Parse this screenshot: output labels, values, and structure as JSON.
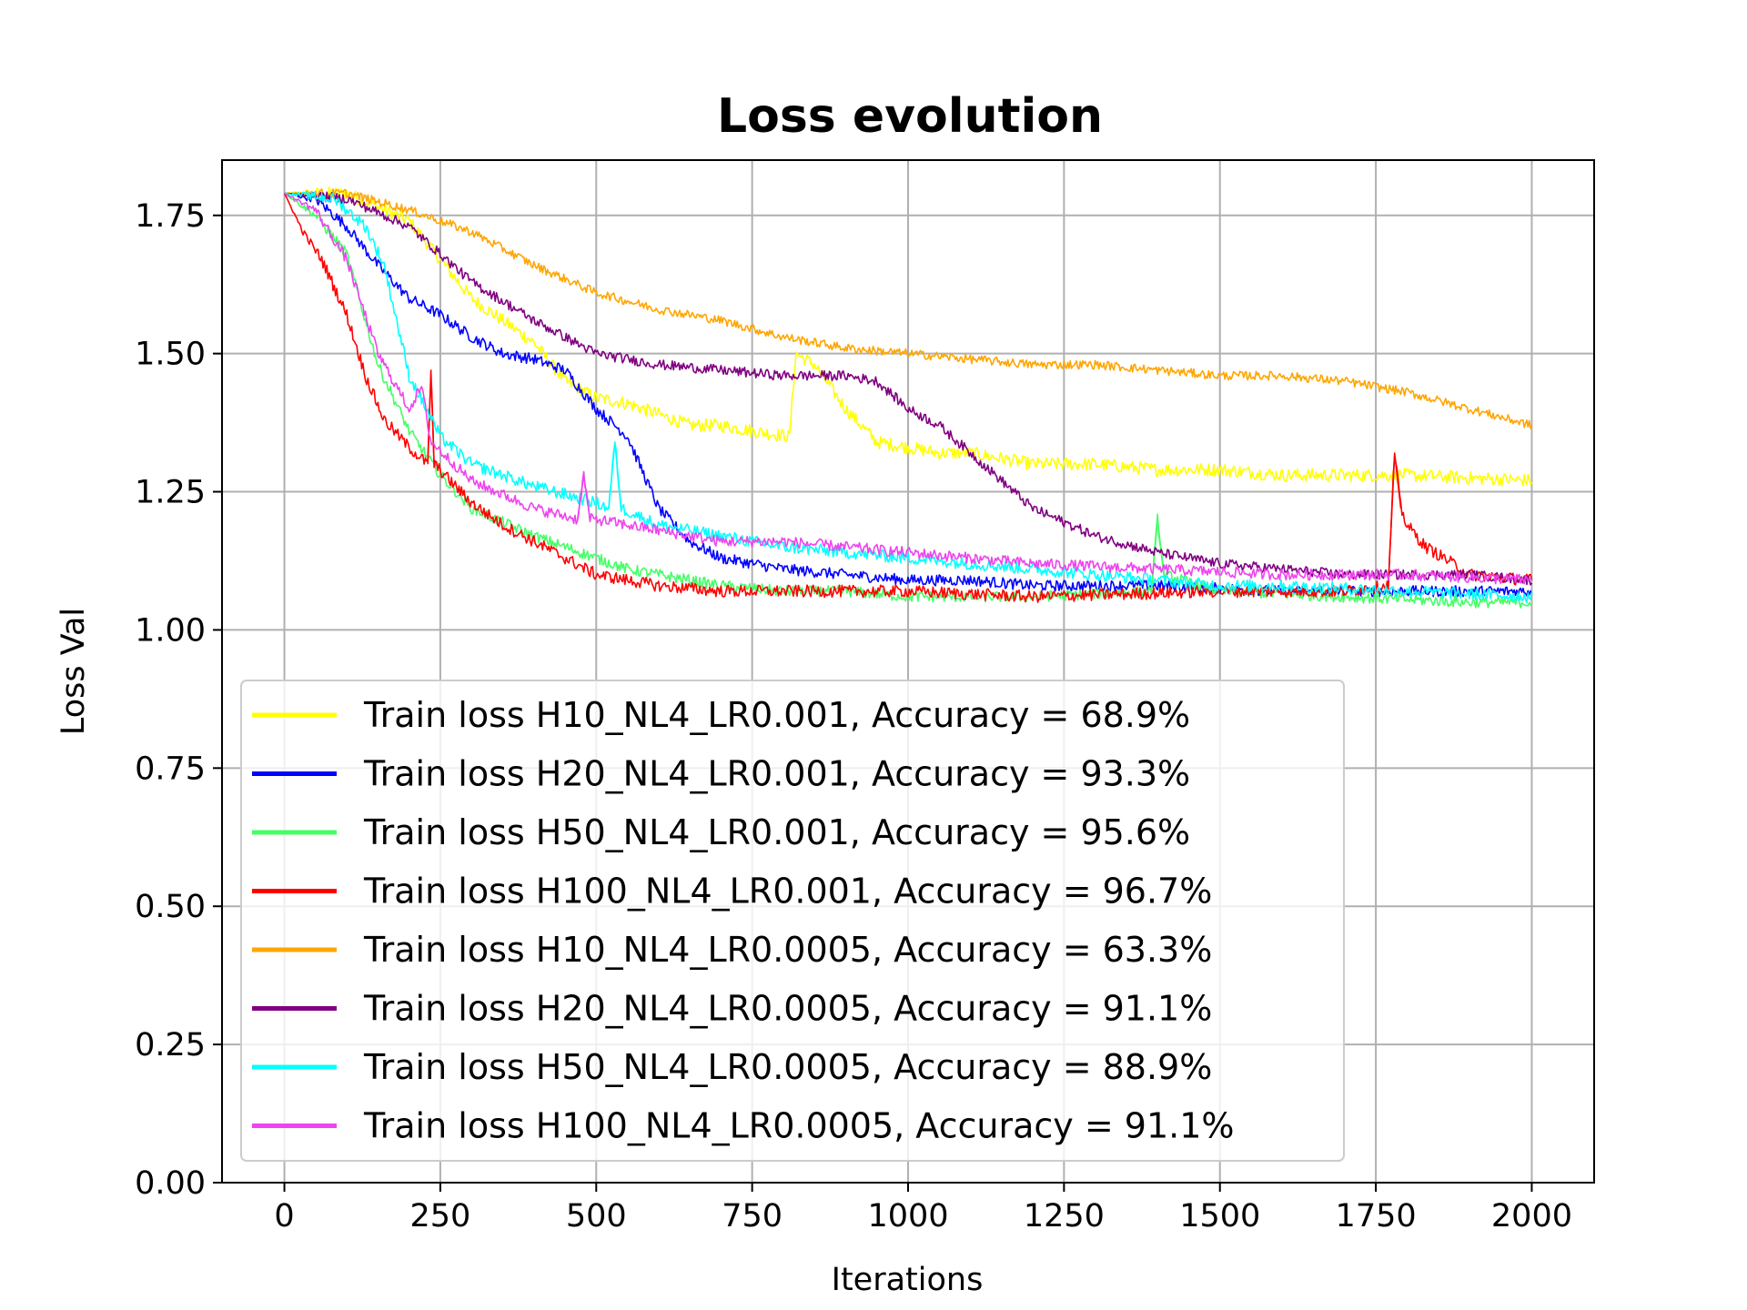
{
  "chart_data": {
    "type": "line",
    "title": "Loss evolution",
    "xlabel": "Iterations",
    "ylabel": "Loss Val",
    "xlim": [
      -100,
      2100
    ],
    "ylim": [
      0,
      1.85
    ],
    "xticks": [
      0,
      250,
      500,
      750,
      1000,
      1250,
      1500,
      1750,
      2000
    ],
    "xtick_labels": [
      "0",
      "250",
      "500",
      "750",
      "1000",
      "1250",
      "1500",
      "1750",
      "2000"
    ],
    "yticks": [
      0,
      0.25,
      0.5,
      0.75,
      1.0,
      1.25,
      1.5,
      1.75
    ],
    "ytick_labels": [
      "0.00",
      "0.25",
      "0.50",
      "0.75",
      "1.00",
      "1.25",
      "1.50",
      "1.75"
    ],
    "grid": true,
    "legend_position": "lower-left",
    "series": [
      {
        "name": "Train loss H10_NL4_LR0.001, Accuracy = 68.9%",
        "color": "#ffff00",
        "noise": 0.012,
        "points": [
          [
            0,
            1.79
          ],
          [
            100,
            1.79
          ],
          [
            200,
            1.74
          ],
          [
            250,
            1.67
          ],
          [
            300,
            1.6
          ],
          [
            350,
            1.56
          ],
          [
            400,
            1.52
          ],
          [
            450,
            1.45
          ],
          [
            500,
            1.42
          ],
          [
            550,
            1.41
          ],
          [
            600,
            1.39
          ],
          [
            650,
            1.37
          ],
          [
            700,
            1.37
          ],
          [
            750,
            1.36
          ],
          [
            810,
            1.35
          ],
          [
            820,
            1.5
          ],
          [
            850,
            1.48
          ],
          [
            900,
            1.4
          ],
          [
            950,
            1.34
          ],
          [
            1000,
            1.33
          ],
          [
            1050,
            1.32
          ],
          [
            1100,
            1.32
          ],
          [
            1200,
            1.3
          ],
          [
            1300,
            1.3
          ],
          [
            1400,
            1.29
          ],
          [
            1500,
            1.29
          ],
          [
            1600,
            1.28
          ],
          [
            1800,
            1.28
          ],
          [
            2000,
            1.27
          ]
        ]
      },
      {
        "name": "Train loss H20_NL4_LR0.001, Accuracy = 93.3%",
        "color": "#0000ff",
        "noise": 0.01,
        "points": [
          [
            0,
            1.79
          ],
          [
            50,
            1.78
          ],
          [
            100,
            1.73
          ],
          [
            150,
            1.66
          ],
          [
            200,
            1.6
          ],
          [
            250,
            1.57
          ],
          [
            300,
            1.53
          ],
          [
            350,
            1.5
          ],
          [
            400,
            1.49
          ],
          [
            450,
            1.47
          ],
          [
            500,
            1.4
          ],
          [
            550,
            1.35
          ],
          [
            600,
            1.22
          ],
          [
            650,
            1.16
          ],
          [
            700,
            1.13
          ],
          [
            800,
            1.11
          ],
          [
            900,
            1.1
          ],
          [
            1000,
            1.09
          ],
          [
            1100,
            1.09
          ],
          [
            1200,
            1.08
          ],
          [
            1400,
            1.08
          ],
          [
            1600,
            1.07
          ],
          [
            1800,
            1.07
          ],
          [
            2000,
            1.07
          ]
        ]
      },
      {
        "name": "Train loss H50_NL4_LR0.001, Accuracy = 95.6%",
        "color": "#44ff66",
        "noise": 0.01,
        "points": [
          [
            0,
            1.79
          ],
          [
            50,
            1.75
          ],
          [
            100,
            1.68
          ],
          [
            150,
            1.48
          ],
          [
            200,
            1.36
          ],
          [
            250,
            1.28
          ],
          [
            300,
            1.22
          ],
          [
            400,
            1.17
          ],
          [
            500,
            1.13
          ],
          [
            550,
            1.11
          ],
          [
            600,
            1.1
          ],
          [
            700,
            1.08
          ],
          [
            800,
            1.07
          ],
          [
            900,
            1.07
          ],
          [
            1000,
            1.06
          ],
          [
            1200,
            1.06
          ],
          [
            1390,
            1.07
          ],
          [
            1400,
            1.2
          ],
          [
            1410,
            1.1
          ],
          [
            1500,
            1.07
          ],
          [
            1700,
            1.06
          ],
          [
            1900,
            1.05
          ],
          [
            2000,
            1.05
          ]
        ]
      },
      {
        "name": "Train loss H100_NL4_LR0.001, Accuracy = 96.7%",
        "color": "#ff0000",
        "noise": 0.011,
        "points": [
          [
            0,
            1.79
          ],
          [
            30,
            1.72
          ],
          [
            60,
            1.67
          ],
          [
            100,
            1.57
          ],
          [
            130,
            1.46
          ],
          [
            160,
            1.38
          ],
          [
            200,
            1.33
          ],
          [
            230,
            1.3
          ],
          [
            235,
            1.47
          ],
          [
            240,
            1.3
          ],
          [
            300,
            1.23
          ],
          [
            350,
            1.19
          ],
          [
            400,
            1.16
          ],
          [
            450,
            1.13
          ],
          [
            500,
            1.1
          ],
          [
            600,
            1.08
          ],
          [
            700,
            1.07
          ],
          [
            800,
            1.07
          ],
          [
            1000,
            1.07
          ],
          [
            1200,
            1.06
          ],
          [
            1500,
            1.07
          ],
          [
            1700,
            1.07
          ],
          [
            1770,
            1.08
          ],
          [
            1780,
            1.32
          ],
          [
            1790,
            1.22
          ],
          [
            1800,
            1.19
          ],
          [
            1830,
            1.15
          ],
          [
            1860,
            1.13
          ],
          [
            1900,
            1.1
          ],
          [
            2000,
            1.09
          ]
        ]
      },
      {
        "name": "Train loss H10_NL4_LR0.0005, Accuracy = 63.3%",
        "color": "#ffa500",
        "noise": 0.008,
        "points": [
          [
            0,
            1.79
          ],
          [
            100,
            1.79
          ],
          [
            200,
            1.76
          ],
          [
            300,
            1.72
          ],
          [
            400,
            1.66
          ],
          [
            500,
            1.61
          ],
          [
            600,
            1.58
          ],
          [
            700,
            1.56
          ],
          [
            800,
            1.53
          ],
          [
            900,
            1.51
          ],
          [
            1000,
            1.5
          ],
          [
            1100,
            1.49
          ],
          [
            1200,
            1.48
          ],
          [
            1300,
            1.48
          ],
          [
            1400,
            1.47
          ],
          [
            1500,
            1.46
          ],
          [
            1600,
            1.46
          ],
          [
            1700,
            1.45
          ],
          [
            1800,
            1.43
          ],
          [
            1900,
            1.4
          ],
          [
            2000,
            1.37
          ]
        ]
      },
      {
        "name": "Train loss H20_NL4_LR0.0005, Accuracy = 91.1%",
        "color": "#800080",
        "noise": 0.009,
        "points": [
          [
            0,
            1.79
          ],
          [
            100,
            1.78
          ],
          [
            200,
            1.73
          ],
          [
            250,
            1.68
          ],
          [
            300,
            1.63
          ],
          [
            400,
            1.56
          ],
          [
            500,
            1.5
          ],
          [
            600,
            1.48
          ],
          [
            700,
            1.47
          ],
          [
            800,
            1.46
          ],
          [
            900,
            1.46
          ],
          [
            950,
            1.45
          ],
          [
            1000,
            1.4
          ],
          [
            1050,
            1.37
          ],
          [
            1100,
            1.32
          ],
          [
            1150,
            1.27
          ],
          [
            1200,
            1.22
          ],
          [
            1300,
            1.17
          ],
          [
            1400,
            1.14
          ],
          [
            1500,
            1.12
          ],
          [
            1600,
            1.11
          ],
          [
            1700,
            1.1
          ],
          [
            1800,
            1.1
          ],
          [
            1900,
            1.1
          ],
          [
            2000,
            1.09
          ]
        ]
      },
      {
        "name": "Train loss H50_NL4_LR0.0005, Accuracy = 88.9%",
        "color": "#00ffff",
        "noise": 0.011,
        "points": [
          [
            0,
            1.79
          ],
          [
            80,
            1.78
          ],
          [
            130,
            1.73
          ],
          [
            160,
            1.66
          ],
          [
            200,
            1.46
          ],
          [
            250,
            1.35
          ],
          [
            300,
            1.3
          ],
          [
            400,
            1.26
          ],
          [
            500,
            1.23
          ],
          [
            520,
            1.22
          ],
          [
            530,
            1.34
          ],
          [
            540,
            1.22
          ],
          [
            600,
            1.19
          ],
          [
            700,
            1.17
          ],
          [
            800,
            1.15
          ],
          [
            900,
            1.14
          ],
          [
            1000,
            1.13
          ],
          [
            1100,
            1.12
          ],
          [
            1200,
            1.11
          ],
          [
            1300,
            1.1
          ],
          [
            1400,
            1.09
          ],
          [
            1500,
            1.08
          ],
          [
            1600,
            1.08
          ],
          [
            1800,
            1.07
          ],
          [
            2000,
            1.06
          ]
        ]
      },
      {
        "name": "Train loss H100_NL4_LR0.0005, Accuracy = 91.1%",
        "color": "#ee44ee",
        "noise": 0.01,
        "points": [
          [
            0,
            1.79
          ],
          [
            50,
            1.76
          ],
          [
            100,
            1.67
          ],
          [
            150,
            1.5
          ],
          [
            200,
            1.4
          ],
          [
            220,
            1.44
          ],
          [
            235,
            1.34
          ],
          [
            300,
            1.27
          ],
          [
            400,
            1.22
          ],
          [
            470,
            1.2
          ],
          [
            480,
            1.28
          ],
          [
            490,
            1.2
          ],
          [
            500,
            1.2
          ],
          [
            600,
            1.18
          ],
          [
            700,
            1.16
          ],
          [
            800,
            1.16
          ],
          [
            900,
            1.15
          ],
          [
            1000,
            1.14
          ],
          [
            1100,
            1.13
          ],
          [
            1200,
            1.12
          ],
          [
            1400,
            1.11
          ],
          [
            1600,
            1.1
          ],
          [
            1800,
            1.1
          ],
          [
            2000,
            1.09
          ]
        ]
      }
    ]
  }
}
